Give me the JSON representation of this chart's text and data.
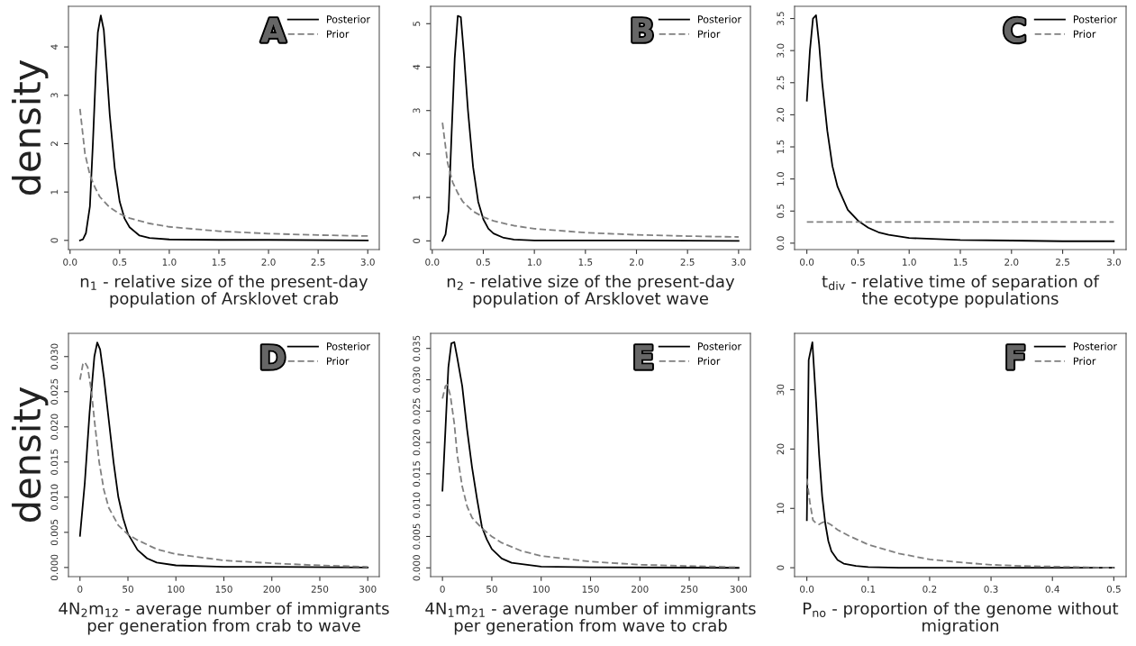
{
  "chart_data": [
    {
      "type": "line",
      "xlabel": "n$_{1}$ - relative size of the present-day\npopulation of Arsklovet crab",
      "ylabel": "density",
      "annotations": [
        "A"
      ],
      "legend": "top right",
      "xlim": [
        -0.016,
        3.116
      ],
      "xticks": [
        {
          "value": 0,
          "label": "0.0"
        },
        {
          "value": 0.5,
          "label": "0.5"
        },
        {
          "value": 1,
          "label": "1.0"
        },
        {
          "value": 1.5,
          "label": "1.5"
        },
        {
          "value": 2,
          "label": "2.0"
        },
        {
          "value": 2.5,
          "label": "2.5"
        },
        {
          "value": 3,
          "label": "3.0"
        }
      ],
      "ylim": [
        -0.19,
        4.84
      ],
      "yticks": [
        0,
        1,
        2,
        3,
        4
      ],
      "series": [
        {
          "name": "Posterior",
          "color": "#000000",
          "line_style": "solid",
          "x": [
            0.1,
            0.13,
            0.16,
            0.2,
            0.23,
            0.26,
            0.28,
            0.31,
            0.34,
            0.37,
            0.4,
            0.45,
            0.5,
            0.55,
            0.6,
            0.7,
            0.8,
            1.0,
            1.5,
            2.0,
            3.0
          ],
          "values": [
            0,
            0.02,
            0.15,
            0.7,
            2.0,
            3.5,
            4.3,
            4.65,
            4.35,
            3.5,
            2.6,
            1.5,
            0.8,
            0.45,
            0.27,
            0.1,
            0.05,
            0.02,
            0.01,
            0.01,
            0
          ]
        },
        {
          "name": "Prior",
          "color": "#808080",
          "line_style": "dashed",
          "x": [
            0.1,
            0.15,
            0.2,
            0.25,
            0.3,
            0.4,
            0.5,
            0.6,
            0.8,
            1.0,
            1.5,
            2.0,
            2.5,
            3.0
          ],
          "values": [
            2.72,
            1.8,
            1.35,
            1.1,
            0.9,
            0.68,
            0.55,
            0.46,
            0.35,
            0.28,
            0.19,
            0.14,
            0.11,
            0.09
          ]
        }
      ]
    },
    {
      "type": "line",
      "xlabel": "n$_{2}$ - relative size of the present-day\npopulation of Arsklovet wave",
      "annotations": [
        "B"
      ],
      "legend": "top right",
      "xlim": [
        -0.016,
        3.116
      ],
      "xticks": [
        {
          "value": 0,
          "label": "0.0"
        },
        {
          "value": 0.5,
          "label": "0.5"
        },
        {
          "value": 1,
          "label": "1.0"
        },
        {
          "value": 1.5,
          "label": "1.5"
        },
        {
          "value": 2,
          "label": "2.0"
        },
        {
          "value": 2.5,
          "label": "2.5"
        },
        {
          "value": 3,
          "label": "3.0"
        }
      ],
      "ylim": [
        -0.2,
        5.4
      ],
      "yticks": [
        0,
        1,
        2,
        3,
        4,
        5
      ],
      "series": [
        {
          "name": "Posterior",
          "color": "#000000",
          "line_style": "solid",
          "x": [
            0.1,
            0.13,
            0.16,
            0.19,
            0.22,
            0.25,
            0.28,
            0.31,
            0.35,
            0.4,
            0.45,
            0.5,
            0.55,
            0.6,
            0.7,
            0.8,
            1.0,
            2.0,
            3.0
          ],
          "values": [
            0,
            0.15,
            0.7,
            2.5,
            4.2,
            5.18,
            5.15,
            4.3,
            3.0,
            1.7,
            0.9,
            0.5,
            0.28,
            0.17,
            0.07,
            0.03,
            0.01,
            0.01,
            0
          ]
        },
        {
          "name": "Prior",
          "color": "#808080",
          "line_style": "dashed",
          "x": [
            0.1,
            0.15,
            0.2,
            0.25,
            0.3,
            0.4,
            0.5,
            0.6,
            0.8,
            1.0,
            1.5,
            2.0,
            2.5,
            3.0
          ],
          "values": [
            2.72,
            1.8,
            1.35,
            1.1,
            0.9,
            0.68,
            0.55,
            0.46,
            0.35,
            0.28,
            0.19,
            0.14,
            0.11,
            0.09
          ]
        }
      ]
    },
    {
      "type": "line",
      "xlabel": "t$_{div}$ - relative time of separation of\nthe ecotype populations",
      "annotations": [
        "C"
      ],
      "legend": "top right",
      "xlim": [
        -0.12,
        3.12
      ],
      "xticks": [
        {
          "value": 0,
          "label": "0.0"
        },
        {
          "value": 0.5,
          "label": "0.5"
        },
        {
          "value": 1,
          "label": "1.0"
        },
        {
          "value": 1.5,
          "label": "1.5"
        },
        {
          "value": 2,
          "label": "2.0"
        },
        {
          "value": 2.5,
          "label": "2.5"
        },
        {
          "value": 3,
          "label": "3.0"
        }
      ],
      "ylim": [
        -0.1,
        3.69
      ],
      "yticks": [
        {
          "value": 0,
          "label": "0.0"
        },
        {
          "value": 0.5,
          "label": "0.5"
        },
        {
          "value": 1,
          "label": "1.0"
        },
        {
          "value": 1.5,
          "label": "1.5"
        },
        {
          "value": 2,
          "label": "2.0"
        },
        {
          "value": 2.5,
          "label": "2.5"
        },
        {
          "value": 3,
          "label": "3.0"
        },
        {
          "value": 3.5,
          "label": "3.5"
        }
      ],
      "series": [
        {
          "name": "Posterior",
          "color": "#000000",
          "line_style": "solid",
          "x": [
            0,
            0.03,
            0.06,
            0.09,
            0.12,
            0.15,
            0.2,
            0.25,
            0.3,
            0.4,
            0.5,
            0.6,
            0.7,
            0.8,
            1.0,
            1.5,
            2.0,
            2.5,
            3.0
          ],
          "values": [
            2.22,
            3.0,
            3.5,
            3.55,
            3.1,
            2.5,
            1.75,
            1.2,
            0.88,
            0.52,
            0.35,
            0.24,
            0.17,
            0.13,
            0.08,
            0.05,
            0.04,
            0.03,
            0.03
          ]
        },
        {
          "name": "Prior",
          "color": "#808080",
          "line_style": "dashed",
          "x": [
            0,
            3
          ],
          "values": [
            0.33,
            0.33
          ]
        }
      ]
    },
    {
      "type": "line",
      "xlabel": "4N$_{2}$m$_{12}$ - average number of immigrants\nper generation from crab to wave",
      "ylabel": "density",
      "annotations": [
        "D"
      ],
      "legend": "top right",
      "xlim": [
        -12,
        312
      ],
      "xticks": [
        0,
        50,
        100,
        150,
        200,
        250,
        300
      ],
      "ylim": [
        -0.0013,
        0.0333
      ],
      "yticks": [
        {
          "value": 0,
          "label": "0.000"
        },
        {
          "value": 0.005,
          "label": "0.005"
        },
        {
          "value": 0.01,
          "label": "0.010"
        },
        {
          "value": 0.015,
          "label": "0.015"
        },
        {
          "value": 0.02,
          "label": "0.020"
        },
        {
          "value": 0.025,
          "label": "0.025"
        },
        {
          "value": 0.03,
          "label": "0.030"
        }
      ],
      "series": [
        {
          "name": "Posterior",
          "color": "#000000",
          "line_style": "solid",
          "x": [
            0,
            5,
            10,
            15,
            18,
            21,
            25,
            30,
            35,
            40,
            45,
            50,
            60,
            70,
            80,
            100,
            150,
            200,
            300
          ],
          "values": [
            0.0045,
            0.012,
            0.022,
            0.03,
            0.032,
            0.031,
            0.027,
            0.021,
            0.015,
            0.01,
            0.007,
            0.0048,
            0.0025,
            0.0013,
            0.0007,
            0.0003,
            0.0001,
            0.0001,
            0
          ]
        },
        {
          "name": "Prior",
          "color": "#808080",
          "line_style": "dashed",
          "x": [
            0,
            3,
            5,
            8,
            12,
            15,
            20,
            25,
            30,
            40,
            50,
            60,
            80,
            100,
            150,
            200,
            250,
            300
          ],
          "values": [
            0.0267,
            0.0289,
            0.0292,
            0.0285,
            0.025,
            0.021,
            0.015,
            0.011,
            0.0085,
            0.006,
            0.0047,
            0.0039,
            0.0026,
            0.0019,
            0.001,
            0.0006,
            0.0003,
            0.0001
          ]
        }
      ]
    },
    {
      "type": "line",
      "xlabel": "4N$_{1}$m$_{21}$ - average number of immigrants\nper generation from wave to crab",
      "annotations": [
        "E"
      ],
      "legend": "top right",
      "xlim": [
        -12,
        312
      ],
      "xticks": [
        0,
        50,
        100,
        150,
        200,
        250,
        300
      ],
      "ylim": [
        -0.0014,
        0.0374
      ],
      "yticks": [
        {
          "value": 0,
          "label": "0.000"
        },
        {
          "value": 0.005,
          "label": "0.005"
        },
        {
          "value": 0.01,
          "label": "0.010"
        },
        {
          "value": 0.015,
          "label": "0.015"
        },
        {
          "value": 0.02,
          "label": "0.020"
        },
        {
          "value": 0.025,
          "label": "0.025"
        },
        {
          "value": 0.03,
          "label": "0.030"
        },
        {
          "value": 0.035,
          "label": "0.035"
        }
      ],
      "series": [
        {
          "name": "Posterior",
          "color": "#000000",
          "line_style": "solid",
          "x": [
            0,
            3,
            6,
            9,
            12,
            15,
            20,
            25,
            30,
            35,
            40,
            45,
            50,
            60,
            70,
            100,
            150,
            300
          ],
          "values": [
            0.0123,
            0.022,
            0.032,
            0.0358,
            0.036,
            0.0335,
            0.029,
            0.022,
            0.016,
            0.011,
            0.0065,
            0.0045,
            0.003,
            0.0015,
            0.0008,
            0.0002,
            0.0001,
            0
          ]
        },
        {
          "name": "Prior",
          "color": "#808080",
          "line_style": "dashed",
          "x": [
            0,
            3,
            5,
            8,
            12,
            15,
            20,
            25,
            30,
            40,
            50,
            60,
            80,
            100,
            150,
            200,
            250,
            300
          ],
          "values": [
            0.027,
            0.029,
            0.0292,
            0.0275,
            0.023,
            0.018,
            0.013,
            0.0098,
            0.008,
            0.0063,
            0.005,
            0.004,
            0.0027,
            0.0019,
            0.001,
            0.0005,
            0.0003,
            0.0001
          ]
        }
      ]
    },
    {
      "type": "line",
      "xlabel": "P$_{no}$ - proportion of the genome without\nmigration",
      "annotations": [
        "F"
      ],
      "legend": "top right",
      "xlim": [
        -0.02,
        0.52
      ],
      "xticks": [
        {
          "value": 0,
          "label": "0.0"
        },
        {
          "value": 0.1,
          "label": "0.1"
        },
        {
          "value": 0.2,
          "label": "0.2"
        },
        {
          "value": 0.3,
          "label": "0.3"
        },
        {
          "value": 0.4,
          "label": "0.4"
        },
        {
          "value": 0.5,
          "label": "0.5"
        }
      ],
      "ylim": [
        -1.5,
        39.5
      ],
      "yticks": [
        0,
        10,
        20,
        30
      ],
      "series": [
        {
          "name": "Posterior",
          "color": "#000000",
          "line_style": "solid",
          "x": [
            0,
            0.003,
            0.009,
            0.015,
            0.02,
            0.025,
            0.03,
            0.035,
            0.04,
            0.05,
            0.06,
            0.08,
            0.1,
            0.15,
            0.2,
            0.5
          ],
          "values": [
            8,
            35,
            38,
            28,
            19,
            12,
            7.5,
            4.5,
            2.8,
            1.3,
            0.7,
            0.3,
            0.1,
            0,
            0,
            0
          ]
        },
        {
          "name": "Prior",
          "color": "#808080",
          "line_style": "dashed",
          "x": [
            0,
            0.005,
            0.01,
            0.015,
            0.02,
            0.025,
            0.03,
            0.04,
            0.05,
            0.07,
            0.1,
            0.15,
            0.2,
            0.25,
            0.3,
            0.35,
            0.4,
            0.5
          ],
          "values": [
            15,
            11,
            8,
            7.5,
            7.3,
            7.6,
            7.8,
            7.2,
            6.4,
            5.3,
            3.9,
            2.4,
            1.4,
            0.9,
            0.5,
            0.3,
            0.2,
            0
          ]
        }
      ]
    }
  ]
}
